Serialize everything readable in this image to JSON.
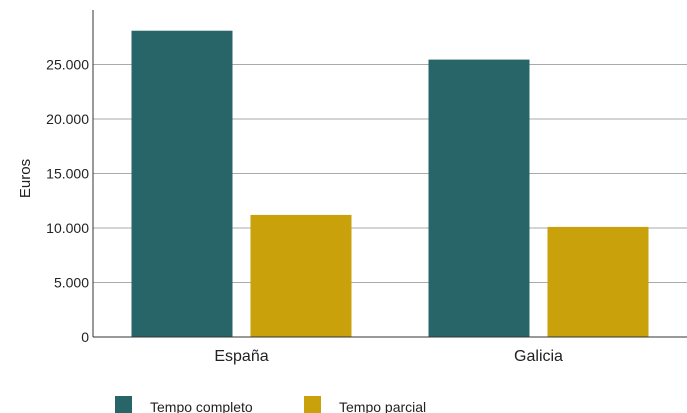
{
  "chart_data": {
    "type": "bar",
    "title": "",
    "xlabel": "",
    "ylabel": "Euros",
    "categories": [
      "España",
      "Galicia"
    ],
    "series": [
      {
        "name": "Tempo completo",
        "values": [
          28100,
          25450
        ],
        "color": "#276569"
      },
      {
        "name": "Tempo parcial",
        "values": [
          11200,
          10100
        ],
        "color": "#c8a10b"
      }
    ],
    "ylim": [
      0,
      30000
    ],
    "yticks": [
      0,
      5000,
      10000,
      15000,
      20000,
      25000
    ],
    "ytick_labels": [
      "0",
      "5.000",
      "10.000",
      "15.000",
      "20.000",
      "25.000"
    ],
    "grid": true,
    "legend_position": "bottom"
  }
}
